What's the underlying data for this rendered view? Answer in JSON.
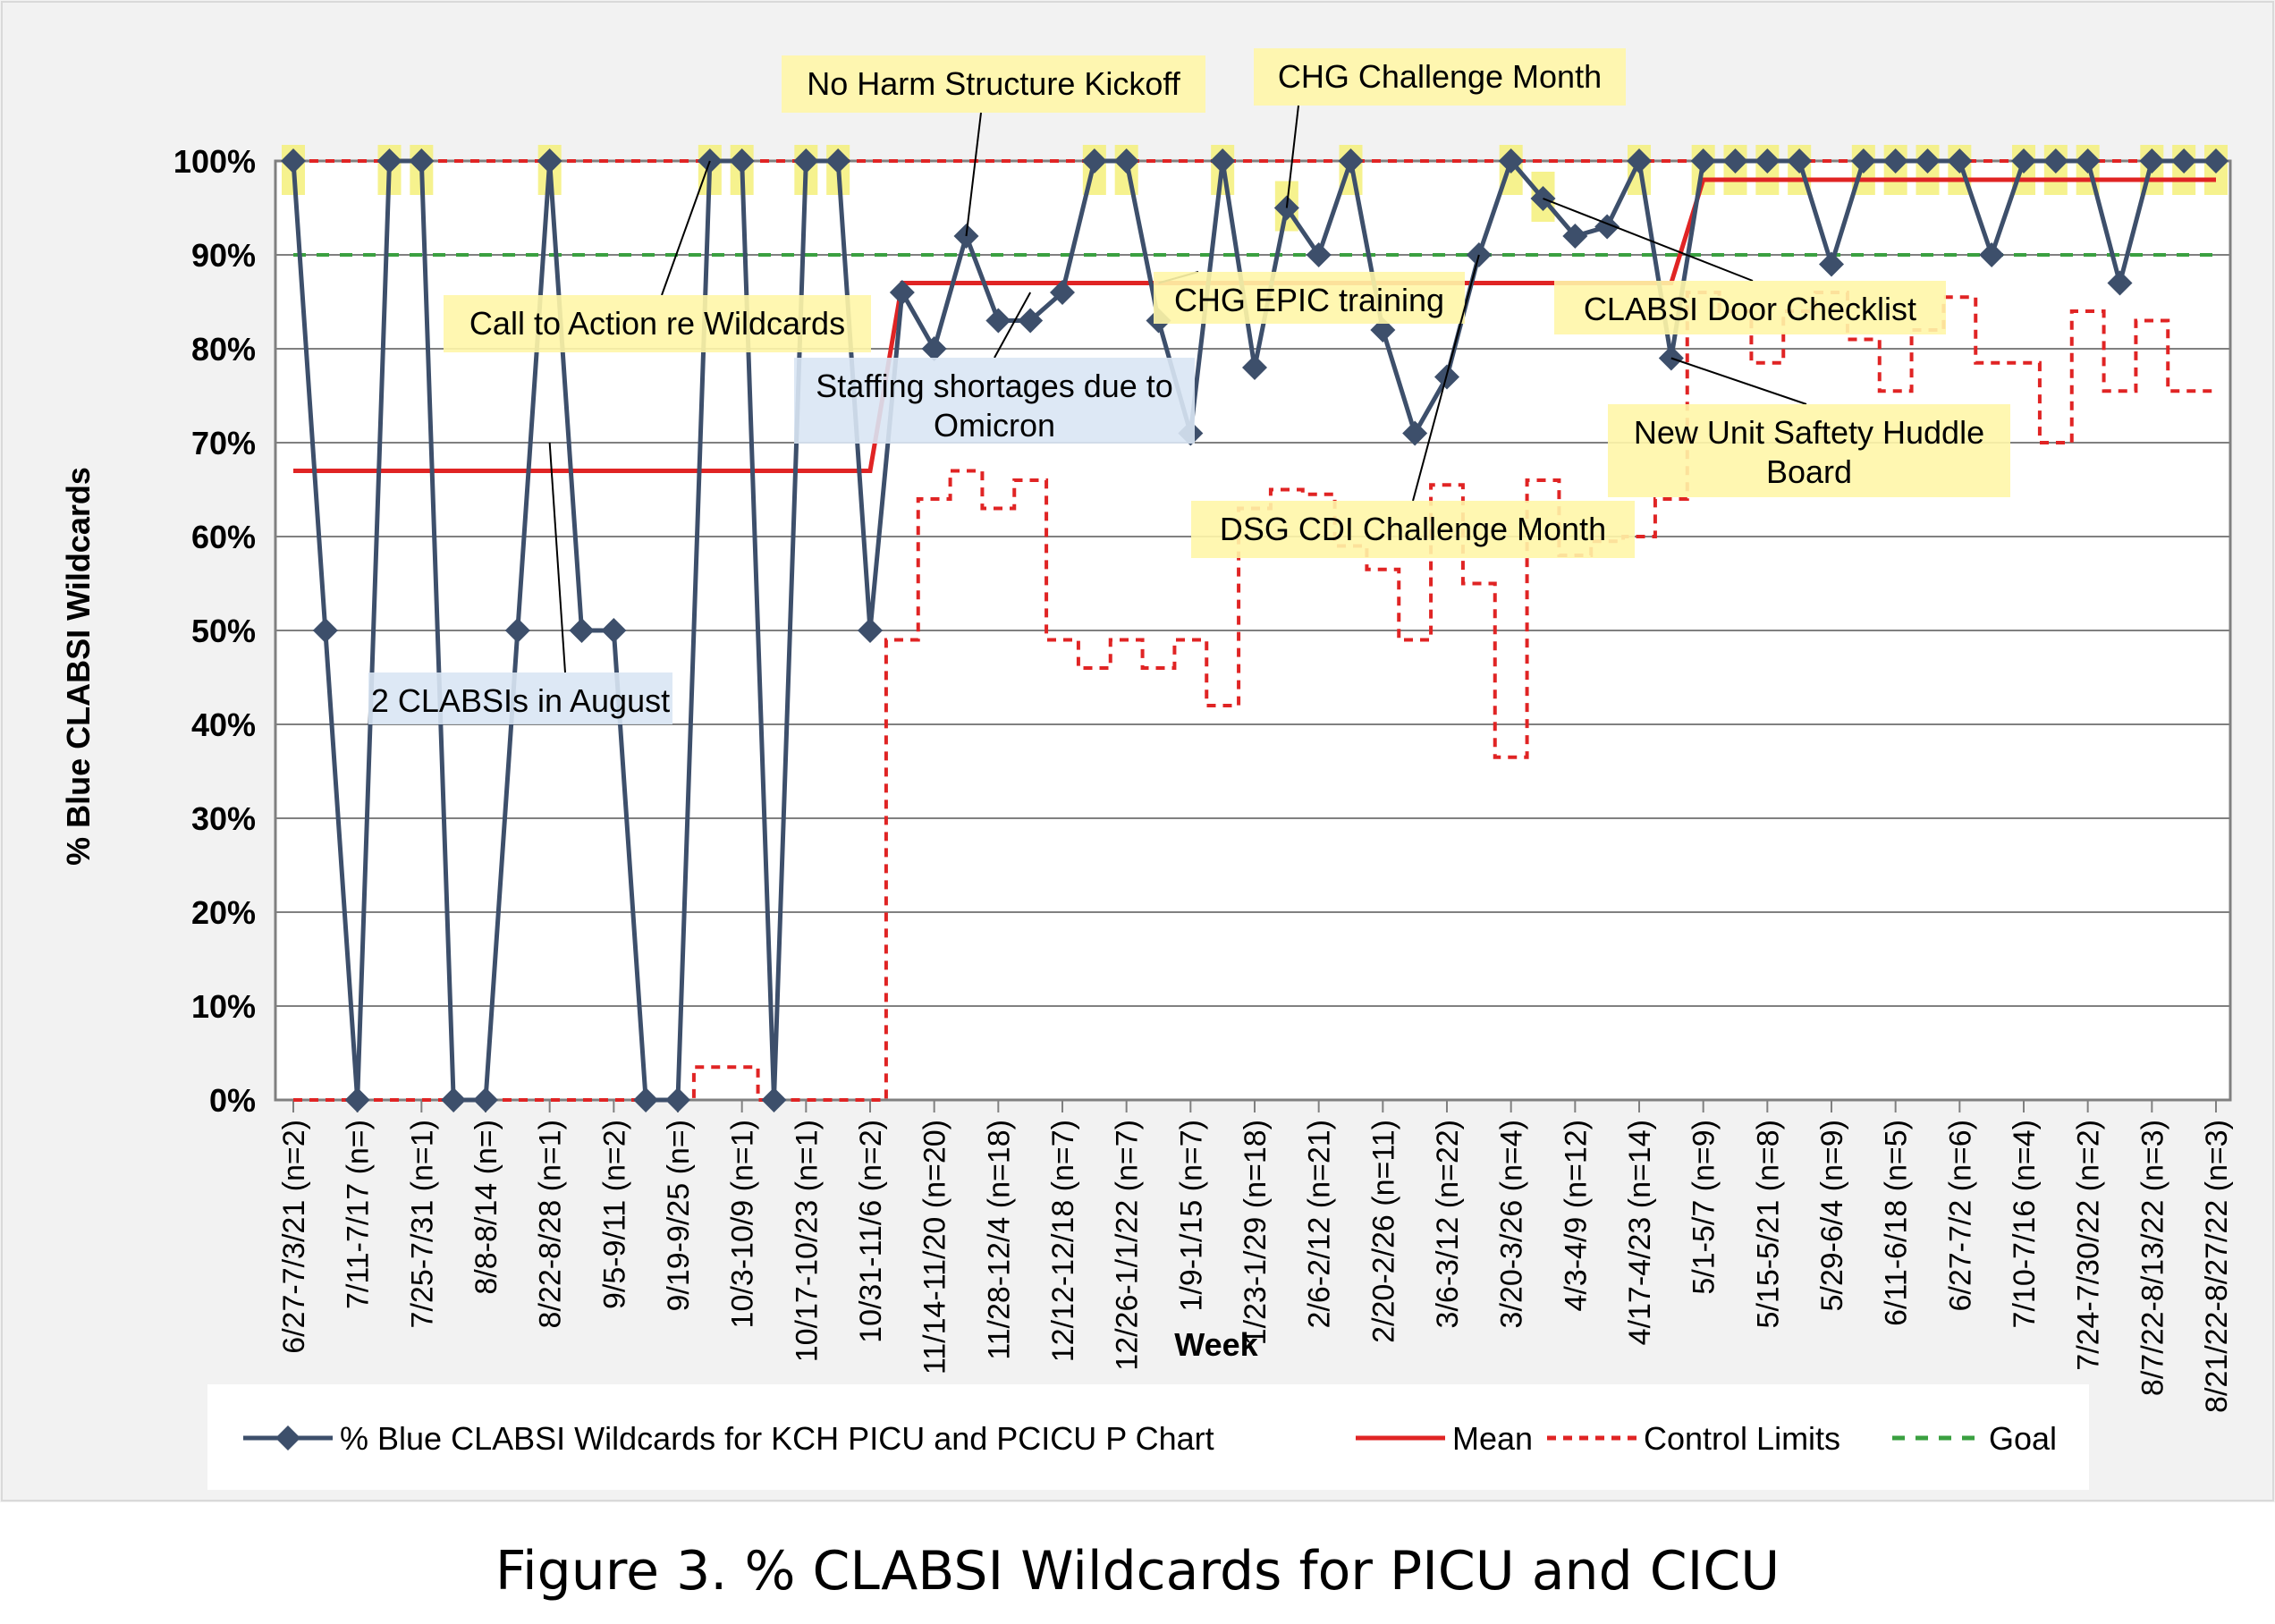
{
  "chart_data": {
    "type": "line",
    "ylabel": "% Blue CLABSI Wildcards",
    "xlabel": "Week",
    "ylim": [
      0,
      100
    ],
    "yticks": [
      "0%",
      "10%",
      "20%",
      "30%",
      "40%",
      "50%",
      "60%",
      "70%",
      "80%",
      "90%",
      "100%"
    ],
    "grid": true,
    "legend_position": "bottom",
    "tick_labels": [
      {
        "i": 0,
        "label": "6/27-7/3/21 (n=2)"
      },
      {
        "i": 2,
        "label": "7/11-7/17 (n=)"
      },
      {
        "i": 4,
        "label": "7/25-7/31 (n=1)"
      },
      {
        "i": 6,
        "label": "8/8-8/14 (n=)"
      },
      {
        "i": 8,
        "label": "8/22-8/28 (n=1)"
      },
      {
        "i": 10,
        "label": "9/5-9/11 (n=2)"
      },
      {
        "i": 12,
        "label": "9/19-9/25 (n=)"
      },
      {
        "i": 14,
        "label": "10/3-10/9 (n=1)"
      },
      {
        "i": 16,
        "label": "10/17-10/23 (n=1)"
      },
      {
        "i": 18,
        "label": "10/31-11/6 (n=2)"
      },
      {
        "i": 20,
        "label": "11/14-11/20 (n=20)"
      },
      {
        "i": 22,
        "label": "11/28-12/4 (n=18)"
      },
      {
        "i": 24,
        "label": "12/12-12/18 (n=7)"
      },
      {
        "i": 26,
        "label": "12/26-1/1/22 (n=7)"
      },
      {
        "i": 28,
        "label": "1/9-1/15 (n=7)"
      },
      {
        "i": 30,
        "label": "1/23-1/29 (n=18)"
      },
      {
        "i": 32,
        "label": "2/6-2/12 (n=21)"
      },
      {
        "i": 34,
        "label": "2/20-2/26 (n=11)"
      },
      {
        "i": 36,
        "label": "3/6-3/12 (n=22)"
      },
      {
        "i": 38,
        "label": "3/20-3/26 (n=4)"
      },
      {
        "i": 40,
        "label": "4/3-4/9 (n=12)"
      },
      {
        "i": 42,
        "label": "4/17-4/23 (n=14)"
      },
      {
        "i": 44,
        "label": "5/1-5/7 (n=9)"
      },
      {
        "i": 46,
        "label": "5/15-5/21 (n=8)"
      },
      {
        "i": 48,
        "label": "5/29-6/4 (n=9)"
      },
      {
        "i": 50,
        "label": "6/11-6/18 (n=5)"
      },
      {
        "i": 52,
        "label": "6/27-7/2 (n=6)"
      },
      {
        "i": 54,
        "label": "7/10-7/16 (n=4)"
      },
      {
        "i": 56,
        "label": "7/24-7/30/22 (n=2)"
      },
      {
        "i": 58,
        "label": "8/7/22-8/13/22 (n=3)"
      },
      {
        "i": 60,
        "label": "8/21/22-8/27/22 (n=3)"
      }
    ],
    "series": [
      {
        "name": "% Blue CLABSI Wildcards for KCH PICU and PCICU P Chart",
        "color": "#3d4f6b",
        "values": [
          100,
          50,
          0,
          100,
          100,
          0,
          0,
          50,
          100,
          50,
          50,
          0,
          0,
          100,
          100,
          0,
          100,
          100,
          50,
          86,
          80,
          92,
          83,
          83,
          86,
          100,
          100,
          83,
          71,
          100,
          78,
          95,
          90,
          100,
          82,
          71,
          77,
          90,
          100,
          96,
          92,
          93,
          100,
          79,
          100,
          100,
          100,
          100,
          89,
          100,
          100,
          100,
          100,
          90,
          100,
          100,
          100,
          87,
          100,
          100,
          100
        ]
      },
      {
        "name": "Mean",
        "color": "#e02424",
        "values": [
          67,
          67,
          67,
          67,
          67,
          67,
          67,
          67,
          67,
          67,
          67,
          67,
          67,
          67,
          67,
          67,
          67,
          67,
          67,
          87,
          87,
          87,
          87,
          87,
          87,
          87,
          87,
          87,
          87,
          87,
          87,
          87,
          87,
          87,
          87,
          87,
          87,
          87,
          87,
          87,
          87,
          87,
          87,
          87,
          98,
          98,
          98,
          98,
          98,
          98,
          98,
          98,
          98,
          98,
          98,
          98,
          98,
          98,
          98,
          98,
          98
        ]
      },
      {
        "name": "Control Limits",
        "color": "#e02424",
        "upper": [
          100,
          100,
          100,
          100,
          100,
          100,
          100,
          100,
          100,
          100,
          100,
          100,
          100,
          100,
          100,
          100,
          100,
          100,
          100,
          100,
          100,
          100,
          100,
          100,
          100,
          100,
          100,
          100,
          100,
          100,
          100,
          100,
          100,
          100,
          100,
          100,
          100,
          100,
          100,
          100,
          100,
          100,
          100,
          100,
          100,
          100,
          100,
          100,
          100,
          100,
          100,
          100,
          100,
          100,
          100,
          100,
          100,
          100,
          100,
          100,
          100
        ],
        "lower": [
          0,
          0,
          0,
          0,
          0,
          0,
          0,
          0,
          0,
          0,
          0,
          0,
          0,
          3.5,
          3.5,
          0,
          0,
          0,
          0,
          49,
          64,
          67,
          63,
          66,
          49,
          46,
          49,
          46,
          49,
          42,
          63,
          65,
          64.5,
          59,
          56.5,
          49,
          65.5,
          55,
          36.5,
          66,
          58,
          59.5,
          60,
          64,
          86,
          84,
          78.5,
          84,
          86,
          81,
          75.5,
          82,
          85.5,
          78.5,
          78.5,
          70,
          84,
          75.5,
          83,
          75.5,
          75.5
        ]
      },
      {
        "name": "Goal",
        "color": "#3aa040",
        "values": [
          90,
          90,
          90,
          90,
          90,
          90,
          90,
          90,
          90,
          90,
          90,
          90,
          90,
          90,
          90,
          90,
          90,
          90,
          90,
          90,
          90,
          90,
          90,
          90,
          90,
          90,
          90,
          90,
          90,
          90,
          90,
          90,
          90,
          90,
          90,
          90,
          90,
          90,
          90,
          90,
          90,
          90,
          90,
          90,
          90,
          90,
          90,
          90,
          90,
          90,
          90,
          90,
          90,
          90,
          90,
          90,
          90,
          90,
          90,
          90,
          90
        ]
      }
    ],
    "highlight_color": "#f5f07a",
    "annotations": [
      {
        "text": [
          "No Harm Structure Kickoff"
        ],
        "at": 21,
        "value": 92
      },
      {
        "text": [
          "CHG Challenge Month"
        ],
        "at": 31,
        "value": 95
      },
      {
        "text": [
          "Call to Action re Wildcards"
        ],
        "at": 13,
        "value": 100
      },
      {
        "text": [
          "CHG EPIC training"
        ],
        "at": 27,
        "value": 87
      },
      {
        "text": [
          "CLABSI Door Checklist"
        ],
        "at": 39,
        "value": 96
      },
      {
        "text": [
          "Staffing shortages due to",
          "Omicron"
        ],
        "at": 23,
        "value": 86
      },
      {
        "text": [
          "New Unit Saftety Huddle",
          "Board"
        ],
        "at": 43,
        "value": 79
      },
      {
        "text": [
          "DSG CDI Challenge Month"
        ],
        "at": 37,
        "value": 90
      },
      {
        "text": [
          "2 CLABSIs in August"
        ],
        "at": 8,
        "value": 70
      }
    ]
  },
  "caption": "Figure 3. % CLABSI Wildcards for PICU and CICU"
}
